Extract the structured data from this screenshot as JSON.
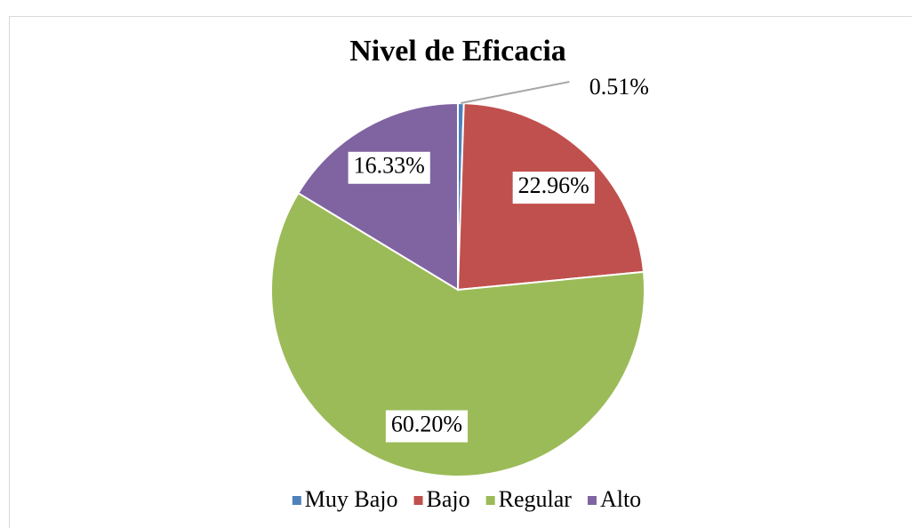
{
  "chart_data": {
    "type": "pie",
    "title": "Nivel de Eficacia",
    "categories": [
      "Muy Bajo",
      "Bajo",
      "Regular",
      "Alto"
    ],
    "values": [
      0.51,
      22.96,
      60.2,
      16.33
    ],
    "value_labels": [
      "0.51%",
      "22.96%",
      "60.20%",
      "16.33%"
    ],
    "colors": [
      "#4f81bd",
      "#c0504d",
      "#9bbb59",
      "#8064a2"
    ],
    "legend": "bottom"
  }
}
